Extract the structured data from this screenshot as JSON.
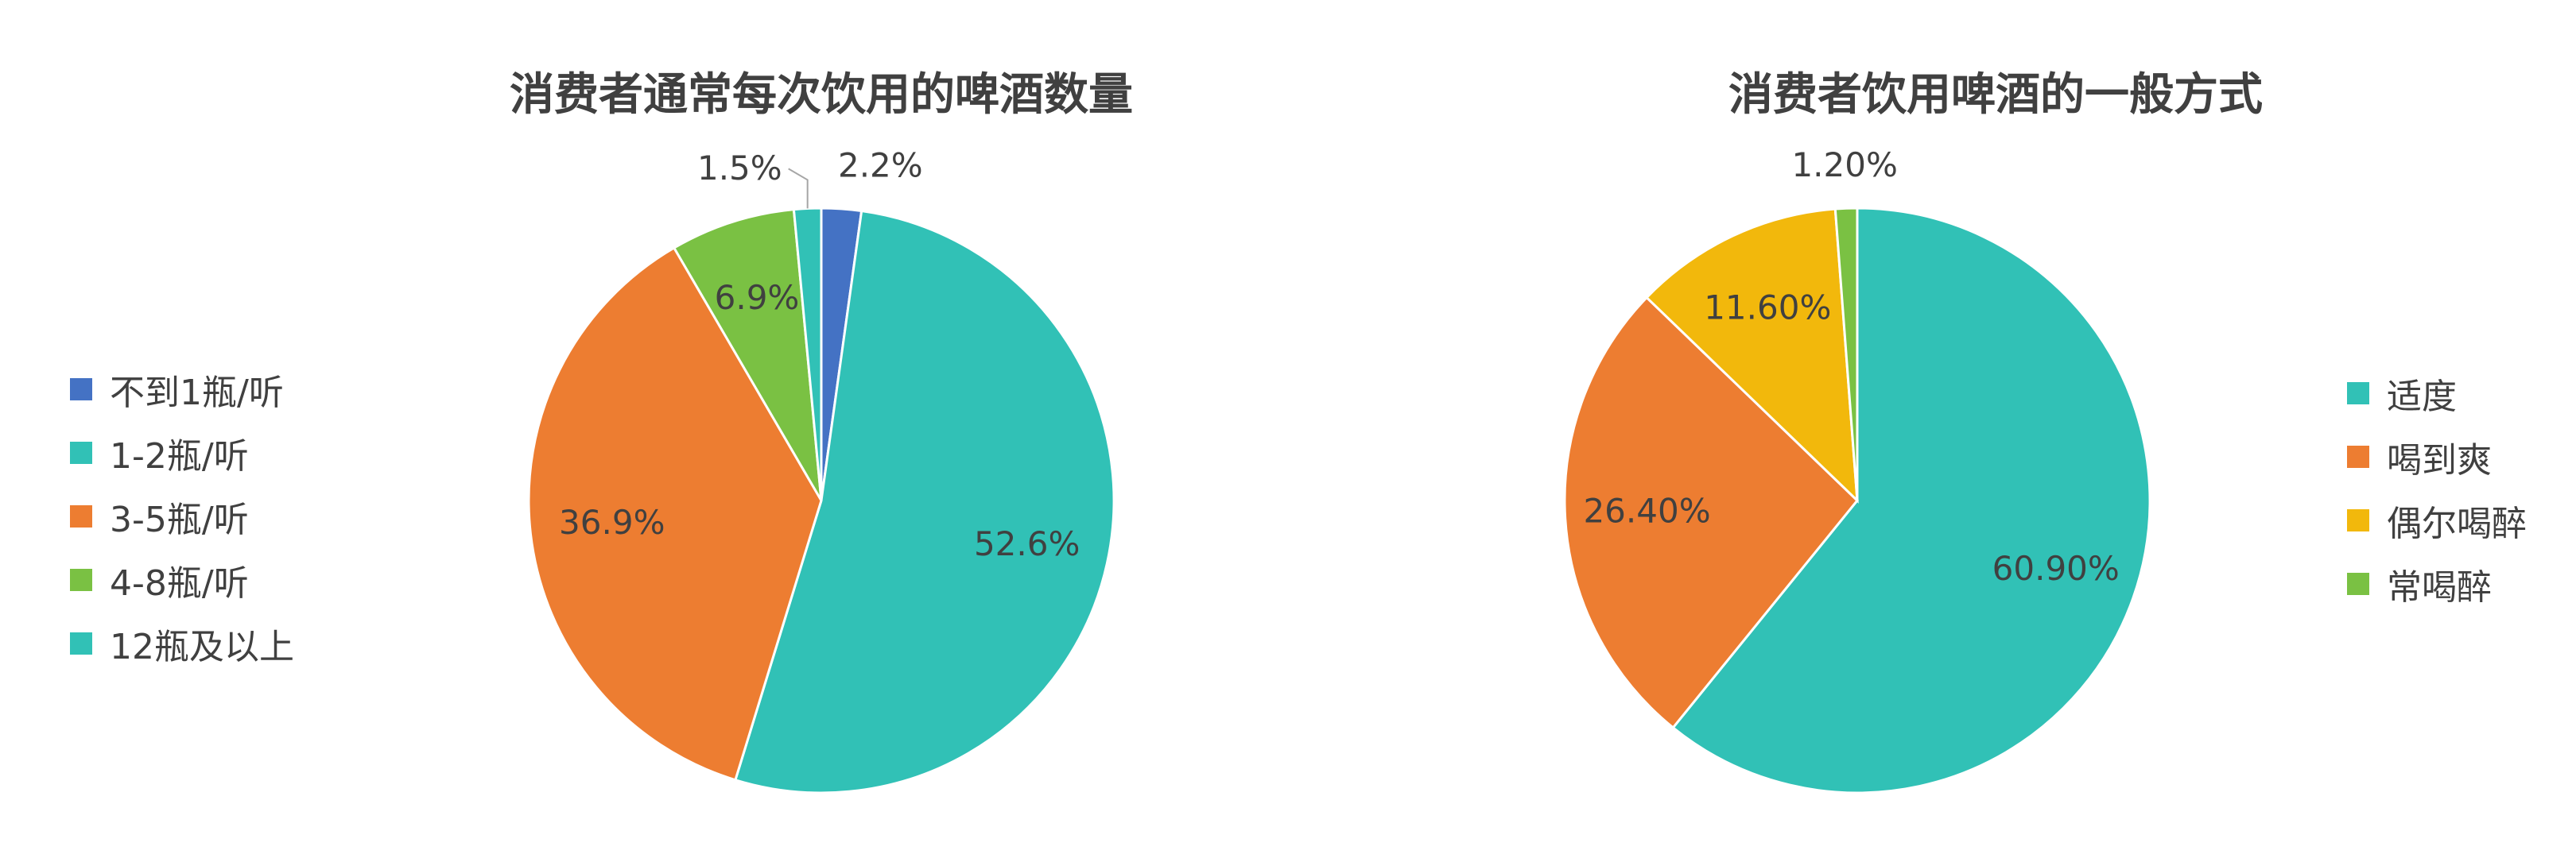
{
  "chart_data": [
    {
      "type": "pie",
      "title": "消费者通常每次饮用的啤酒数量",
      "legend_position": "left",
      "start_angle_deg": 0,
      "slices": [
        {
          "label": "不到1瓶/听",
          "value": 2.2,
          "display": "2.2%",
          "color": "#4472C4",
          "label_pos": "outside"
        },
        {
          "label": "1-2瓶/听",
          "value": 52.6,
          "display": "52.6%",
          "color": "#31C1B6",
          "label_pos": "inside"
        },
        {
          "label": "3-5瓶/听",
          "value": 36.9,
          "display": "36.9%",
          "color": "#ED7D31",
          "label_pos": "inside"
        },
        {
          "label": "4-8瓶/听",
          "value": 6.9,
          "display": "6.9%",
          "color": "#7AC143",
          "label_pos": "inside"
        },
        {
          "label": "12瓶及以上",
          "value": 1.5,
          "display": "1.5%",
          "color": "#31C1B6",
          "label_pos": "outside-leader"
        }
      ]
    },
    {
      "type": "pie",
      "title": "消费者饮用啤酒的一般方式",
      "legend_position": "right",
      "start_angle_deg": 0,
      "slices": [
        {
          "label": "适度",
          "value": 60.9,
          "display": "60.90%",
          "color": "#31C1B6",
          "label_pos": "inside"
        },
        {
          "label": "喝到爽",
          "value": 26.4,
          "display": "26.40%",
          "color": "#ED7D31",
          "label_pos": "inside"
        },
        {
          "label": "偶尔喝醉",
          "value": 11.6,
          "display": "11.60%",
          "color": "#F2B80C",
          "label_pos": "inside"
        },
        {
          "label": "常喝醉",
          "value": 1.2,
          "display": "1.20%",
          "color": "#7AC143",
          "label_pos": "outside"
        }
      ]
    }
  ]
}
